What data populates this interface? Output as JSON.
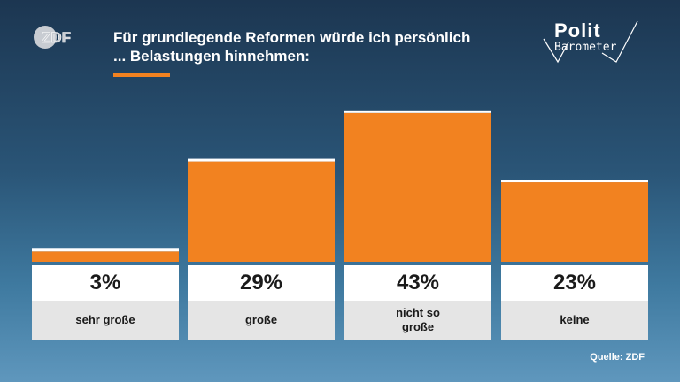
{
  "logo": {
    "name": "zdf-logo",
    "text": "ZDF"
  },
  "brand": {
    "main": "Polit",
    "sub": "Barometer"
  },
  "chart_data": {
    "type": "bar",
    "title": "Für grundlegende Reformen würde ich persönlich ... Belastungen hinnehmen:",
    "title_lines": [
      "Für grundlegende Reformen würde ich persönlich",
      "... Belastungen hinnehmen:"
    ],
    "categories": [
      "sehr große",
      "große",
      "nicht so große",
      "keine"
    ],
    "category_lines": [
      [
        "sehr große"
      ],
      [
        "große"
      ],
      [
        "nicht so",
        "große"
      ],
      [
        "keine"
      ]
    ],
    "values": [
      3,
      29,
      43,
      23
    ],
    "value_labels": [
      "3%",
      "29%",
      "43%",
      "23%"
    ],
    "ylim": [
      0,
      45
    ],
    "bar_color": "#f28220",
    "cap_color": "#ffffff"
  },
  "source": "Quelle: ZDF"
}
